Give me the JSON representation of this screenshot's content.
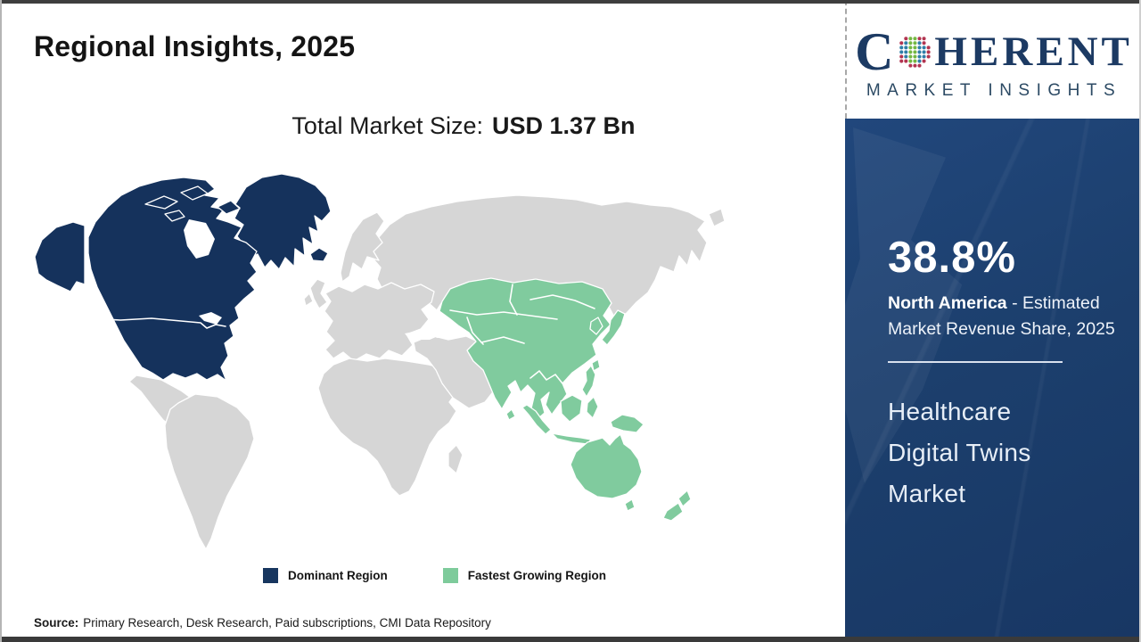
{
  "page": {
    "title": "Regional Insights, 2025"
  },
  "subtitle": {
    "label": "Total Market Size:",
    "value": "USD 1.37 Bn"
  },
  "logo": {
    "first_letter": "C",
    "rest": "HERENT",
    "tagline": "MARKET INSIGHTS",
    "text_color": "#1c3a63",
    "globe_colors": {
      "outer": "#b23450",
      "mid": "#2f7ea8",
      "inner": "#74b843"
    }
  },
  "sidebar": {
    "stat_value": "38.8%",
    "stat_region": "North America",
    "stat_desc": " - Estimated Market Revenue Share, 2025",
    "market_name": "Healthcare Digital Twins Market"
  },
  "legend": [
    {
      "label": "Dominant Region",
      "color": "#17365f"
    },
    {
      "label": "Fastest Growing Region",
      "color": "#7ecb9b"
    }
  ],
  "footer": {
    "label": "Source:",
    "text": "Primary Research, Desk Research, Paid subscriptions, CMI Data Repository"
  },
  "map": {
    "colors": {
      "dominant": "#15325c",
      "fastest_growing": "#80cb9e",
      "other": "#d6d6d6",
      "ocean": "#ffffff"
    },
    "regions": {
      "dominant": "North America",
      "fastest_growing": "Asia Pacific"
    }
  },
  "chart_data": {
    "type": "choropleth_map",
    "title": "Regional Insights, 2025",
    "total_market_size": "USD 1.37 Bn",
    "legend": [
      "Dominant Region",
      "Fastest Growing Region"
    ],
    "regions": [
      {
        "name": "North America",
        "status": "Dominant Region",
        "estimated_market_revenue_share_2025_pct": 38.8
      },
      {
        "name": "Asia Pacific",
        "status": "Fastest Growing Region"
      }
    ]
  }
}
